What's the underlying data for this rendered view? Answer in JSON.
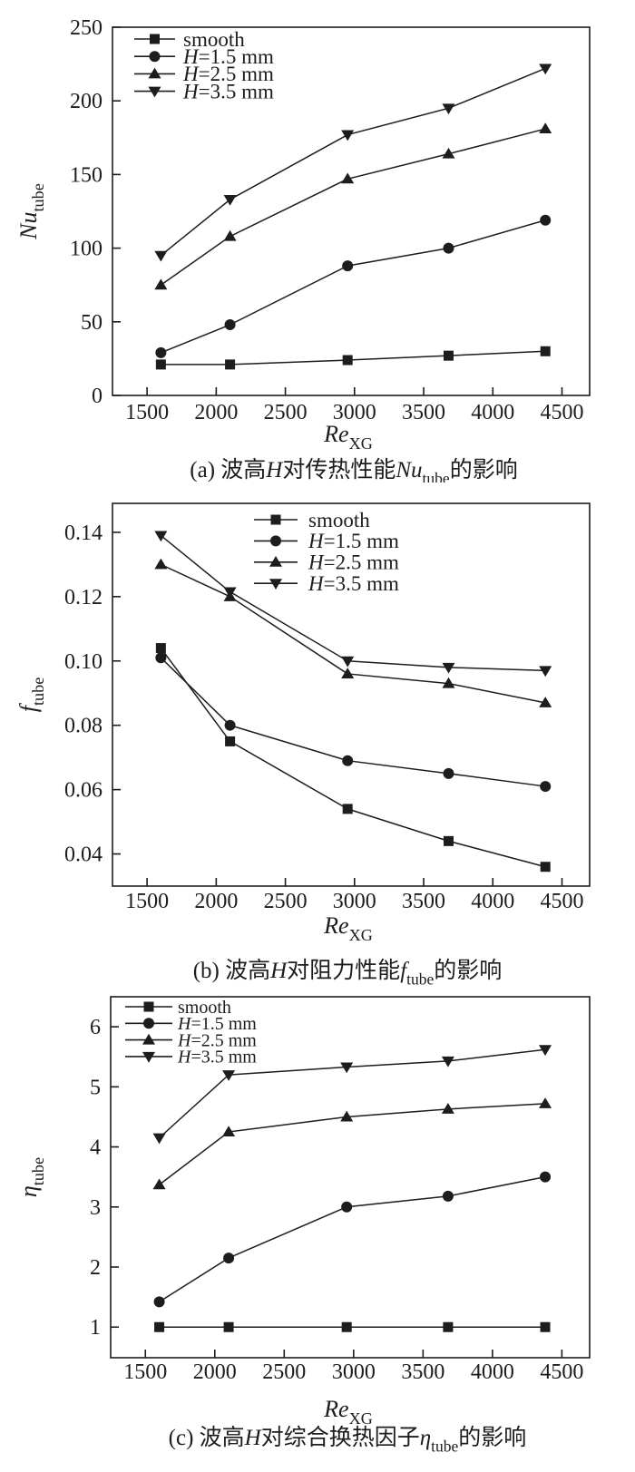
{
  "page": {
    "background": "#ffffff",
    "ink": "#1d1d1d"
  },
  "chart_data": [
    {
      "id": "a",
      "type": "line",
      "caption_parts": [
        {
          "text": "(a) 波高"
        },
        {
          "text": "H",
          "style": "italic"
        },
        {
          "text": "对传热性能"
        },
        {
          "text": "Nu",
          "style": "italic"
        },
        {
          "text": "tube",
          "style": "sub"
        },
        {
          "text": "的影响"
        }
      ],
      "x_axis": {
        "label_parts": [
          {
            "text": "Re",
            "style": "italic"
          },
          {
            "text": "XG",
            "style": "sub"
          }
        ],
        "ticks": [
          1500,
          2000,
          2500,
          3000,
          3500,
          4000,
          4500
        ],
        "tick_labels": [
          "1500",
          "2000",
          "2500",
          "3000",
          "3500",
          "4000",
          "4500"
        ],
        "range": [
          1250,
          4700
        ]
      },
      "y_axis": {
        "label_parts": [
          {
            "text": "Nu",
            "style": "italic"
          },
          {
            "text": "tube",
            "style": "sub"
          }
        ],
        "ticks": [
          0,
          50,
          100,
          150,
          200,
          250
        ],
        "tick_labels": [
          "0",
          "50",
          "100",
          "150",
          "200",
          "250"
        ],
        "range": [
          0,
          250
        ]
      },
      "grid": false,
      "legend_position": "top-left-inside",
      "x": [
        1600,
        2100,
        2950,
        3680,
        4380
      ],
      "series": [
        {
          "name": "smooth",
          "label_parts": [
            {
              "text": "smooth"
            }
          ],
          "marker": "square",
          "values": [
            21,
            21,
            24,
            27,
            30
          ]
        },
        {
          "name": "H=1.5 mm",
          "label_parts": [
            {
              "text": "H",
              "style": "italic"
            },
            {
              "text": "=1.5 mm"
            }
          ],
          "marker": "circle",
          "values": [
            29,
            48,
            88,
            100,
            119
          ]
        },
        {
          "name": "H=2.5 mm",
          "label_parts": [
            {
              "text": "H",
              "style": "italic"
            },
            {
              "text": "=2.5 mm"
            }
          ],
          "marker": "triangle-up",
          "values": [
            75,
            108,
            147,
            164,
            181
          ]
        },
        {
          "name": "H=3.5 mm",
          "label_parts": [
            {
              "text": "H",
              "style": "italic"
            },
            {
              "text": "=3.5 mm"
            }
          ],
          "marker": "triangle-down",
          "values": [
            95,
            133,
            177,
            195,
            222
          ]
        }
      ]
    },
    {
      "id": "b",
      "type": "line",
      "caption_parts": [
        {
          "text": "(b) 波高"
        },
        {
          "text": "H",
          "style": "italic"
        },
        {
          "text": "对阻力性能"
        },
        {
          "text": "f",
          "style": "italic"
        },
        {
          "text": "tube",
          "style": "sub"
        },
        {
          "text": "的影响"
        }
      ],
      "x_axis": {
        "label_parts": [
          {
            "text": "Re",
            "style": "italic"
          },
          {
            "text": "XG",
            "style": "sub"
          }
        ],
        "ticks": [
          1500,
          2000,
          2500,
          3000,
          3500,
          4000,
          4500
        ],
        "tick_labels": [
          "1500",
          "2000",
          "2500",
          "3000",
          "3500",
          "4000",
          "4500"
        ],
        "range": [
          1250,
          4700
        ]
      },
      "y_axis": {
        "label_parts": [
          {
            "text": "f",
            "style": "italic"
          },
          {
            "text": "tube",
            "style": "sub"
          }
        ],
        "ticks": [
          0.04,
          0.06,
          0.08,
          0.1,
          0.12,
          0.14
        ],
        "tick_labels": [
          "0.04",
          "0.06",
          "0.08",
          "0.10",
          "0.12",
          "0.14"
        ],
        "range": [
          0.03,
          0.149
        ]
      },
      "grid": false,
      "legend_position": "top-center-inside",
      "x": [
        1600,
        2100,
        2950,
        3680,
        4380
      ],
      "series": [
        {
          "name": "smooth",
          "label_parts": [
            {
              "text": "smooth"
            }
          ],
          "marker": "square",
          "values": [
            0.104,
            0.075,
            0.054,
            0.044,
            0.036
          ]
        },
        {
          "name": "H=1.5 mm",
          "label_parts": [
            {
              "text": "H",
              "style": "italic"
            },
            {
              "text": "=1.5 mm"
            }
          ],
          "marker": "circle",
          "values": [
            0.101,
            0.08,
            0.069,
            0.065,
            0.061
          ]
        },
        {
          "name": "H=2.5 mm",
          "label_parts": [
            {
              "text": "H",
              "style": "italic"
            },
            {
              "text": "=2.5 mm"
            }
          ],
          "marker": "triangle-up",
          "values": [
            0.13,
            0.12,
            0.096,
            0.093,
            0.087
          ]
        },
        {
          "name": "H=3.5 mm",
          "label_parts": [
            {
              "text": "H",
              "style": "italic"
            },
            {
              "text": "=3.5 mm"
            }
          ],
          "marker": "triangle-down",
          "values": [
            0.139,
            0.1215,
            0.1,
            0.098,
            0.097
          ]
        }
      ]
    },
    {
      "id": "c",
      "type": "line",
      "caption_parts": [
        {
          "text": "(c) 波高"
        },
        {
          "text": "H",
          "style": "italic"
        },
        {
          "text": "对综合换热因子"
        },
        {
          "text": "η",
          "style": "italic"
        },
        {
          "text": "tube",
          "style": "sub"
        },
        {
          "text": "的影响"
        }
      ],
      "x_axis": {
        "label_parts": [
          {
            "text": "Re",
            "style": "italic"
          },
          {
            "text": "XG",
            "style": "sub"
          }
        ],
        "ticks": [
          1500,
          2000,
          2500,
          3000,
          3500,
          4000,
          4500
        ],
        "tick_labels": [
          "1500",
          "2000",
          "2500",
          "3000",
          "3500",
          "4000",
          "4500"
        ],
        "range": [
          1250,
          4700
        ]
      },
      "y_axis": {
        "label_parts": [
          {
            "text": "η",
            "style": "italic"
          },
          {
            "text": "tube",
            "style": "sub"
          }
        ],
        "ticks": [
          1,
          2,
          3,
          4,
          5,
          6
        ],
        "tick_labels": [
          "1",
          "2",
          "3",
          "4",
          "5",
          "6"
        ],
        "range": [
          0.49,
          6.5
        ]
      },
      "grid": false,
      "legend_position": "top-left-inside",
      "x": [
        1600,
        2100,
        2950,
        3680,
        4380
      ],
      "series": [
        {
          "name": "smooth",
          "label_parts": [
            {
              "text": "smooth"
            }
          ],
          "marker": "square",
          "values": [
            1.0,
            1.0,
            1.0,
            1.0,
            1.0
          ]
        },
        {
          "name": "H=1.5 mm",
          "label_parts": [
            {
              "text": "H",
              "style": "italic"
            },
            {
              "text": "=1.5 mm"
            }
          ],
          "marker": "circle",
          "values": [
            1.42,
            2.15,
            3.0,
            3.18,
            3.5
          ]
        },
        {
          "name": "H=2.5 mm",
          "label_parts": [
            {
              "text": "H",
              "style": "italic"
            },
            {
              "text": "=2.5 mm"
            }
          ],
          "marker": "triangle-up",
          "values": [
            3.37,
            4.25,
            4.5,
            4.63,
            4.72
          ]
        },
        {
          "name": "H=3.5 mm",
          "label_parts": [
            {
              "text": "H",
              "style": "italic"
            },
            {
              "text": "=3.5 mm"
            }
          ],
          "marker": "triangle-down",
          "values": [
            4.15,
            5.2,
            5.33,
            5.43,
            5.62
          ]
        }
      ]
    }
  ]
}
